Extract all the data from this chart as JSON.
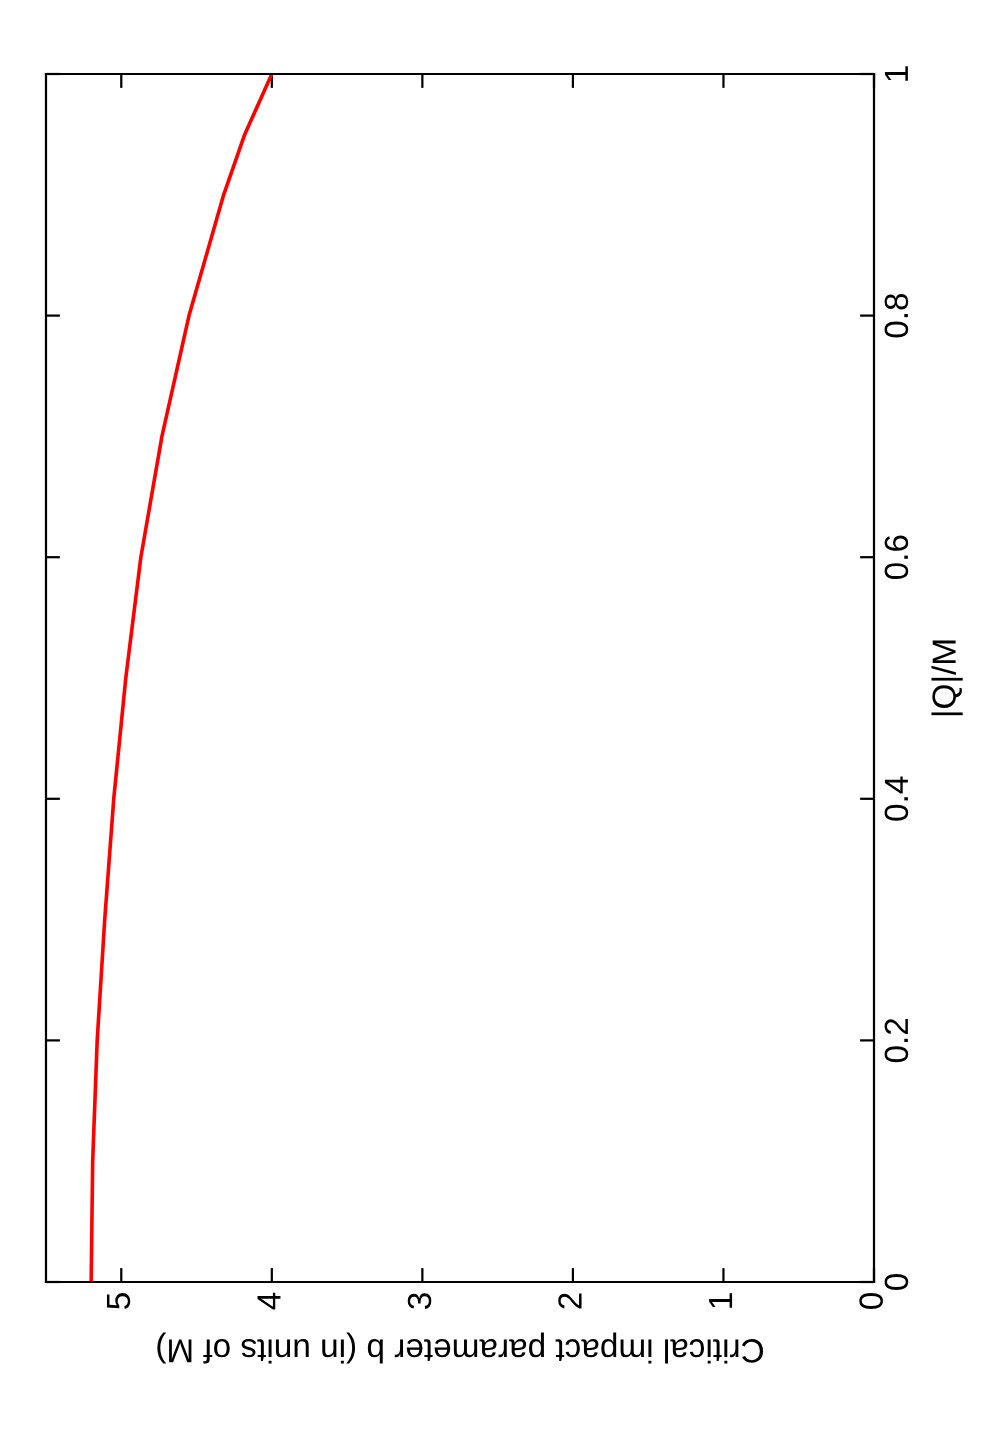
{
  "chart_data": {
    "type": "line",
    "xlabel": "Critical impact parameter b (in units of M)",
    "ylabel": "|Q|/M",
    "x": [
      5.2,
      5.19,
      5.16,
      5.11,
      5.05,
      4.97,
      4.87,
      4.73,
      4.55,
      4.32,
      4.18,
      4.0
    ],
    "series": [
      {
        "color": "#ff0000",
        "values": [
          0,
          0.1,
          0.2,
          0.3,
          0.4,
          0.5,
          0.6,
          0.7,
          0.8,
          0.9,
          0.95,
          1.0
        ]
      }
    ],
    "xlim": [
      5.5,
      0
    ],
    "xticks": [
      0,
      1,
      2,
      3,
      4,
      5
    ],
    "ylim": [
      0,
      1
    ],
    "yticks": [
      0,
      0.2,
      0.4,
      0.6,
      0.8,
      1
    ],
    "grid": false,
    "legend": false,
    "marker": "none",
    "line_style": "solid"
  }
}
